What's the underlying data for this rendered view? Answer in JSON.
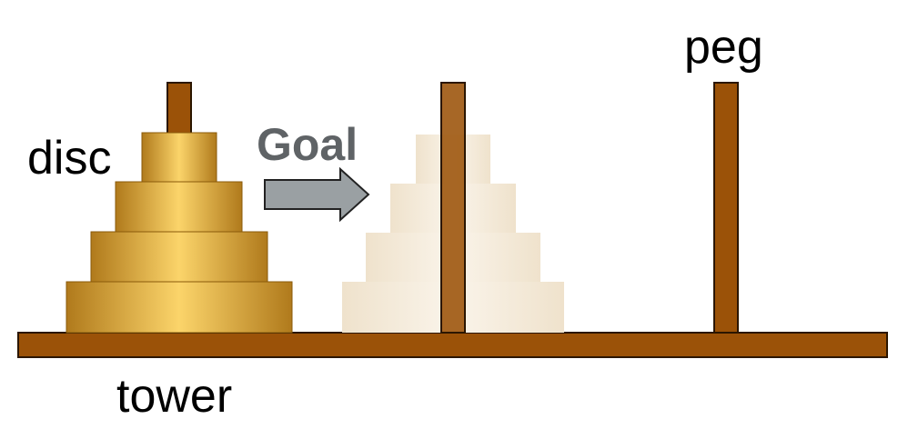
{
  "labels": {
    "disc": "disc",
    "peg": "peg",
    "tower": "tower",
    "goal": "Goal"
  },
  "colors": {
    "wood": "#9b5208",
    "wood_outline": "#2b1600",
    "disc_gold_edge": "#b07a1c",
    "disc_gold_center": "#fbd46a",
    "ghost_disc": "#f4ead9",
    "arrow_fill": "#9aa0a3",
    "arrow_outline": "#222222",
    "goal_text": "#5f6366"
  },
  "towers": {
    "source": {
      "disc_count": 4
    },
    "target": {
      "disc_count": 4,
      "ghosted": true
    },
    "pegs": 3
  }
}
